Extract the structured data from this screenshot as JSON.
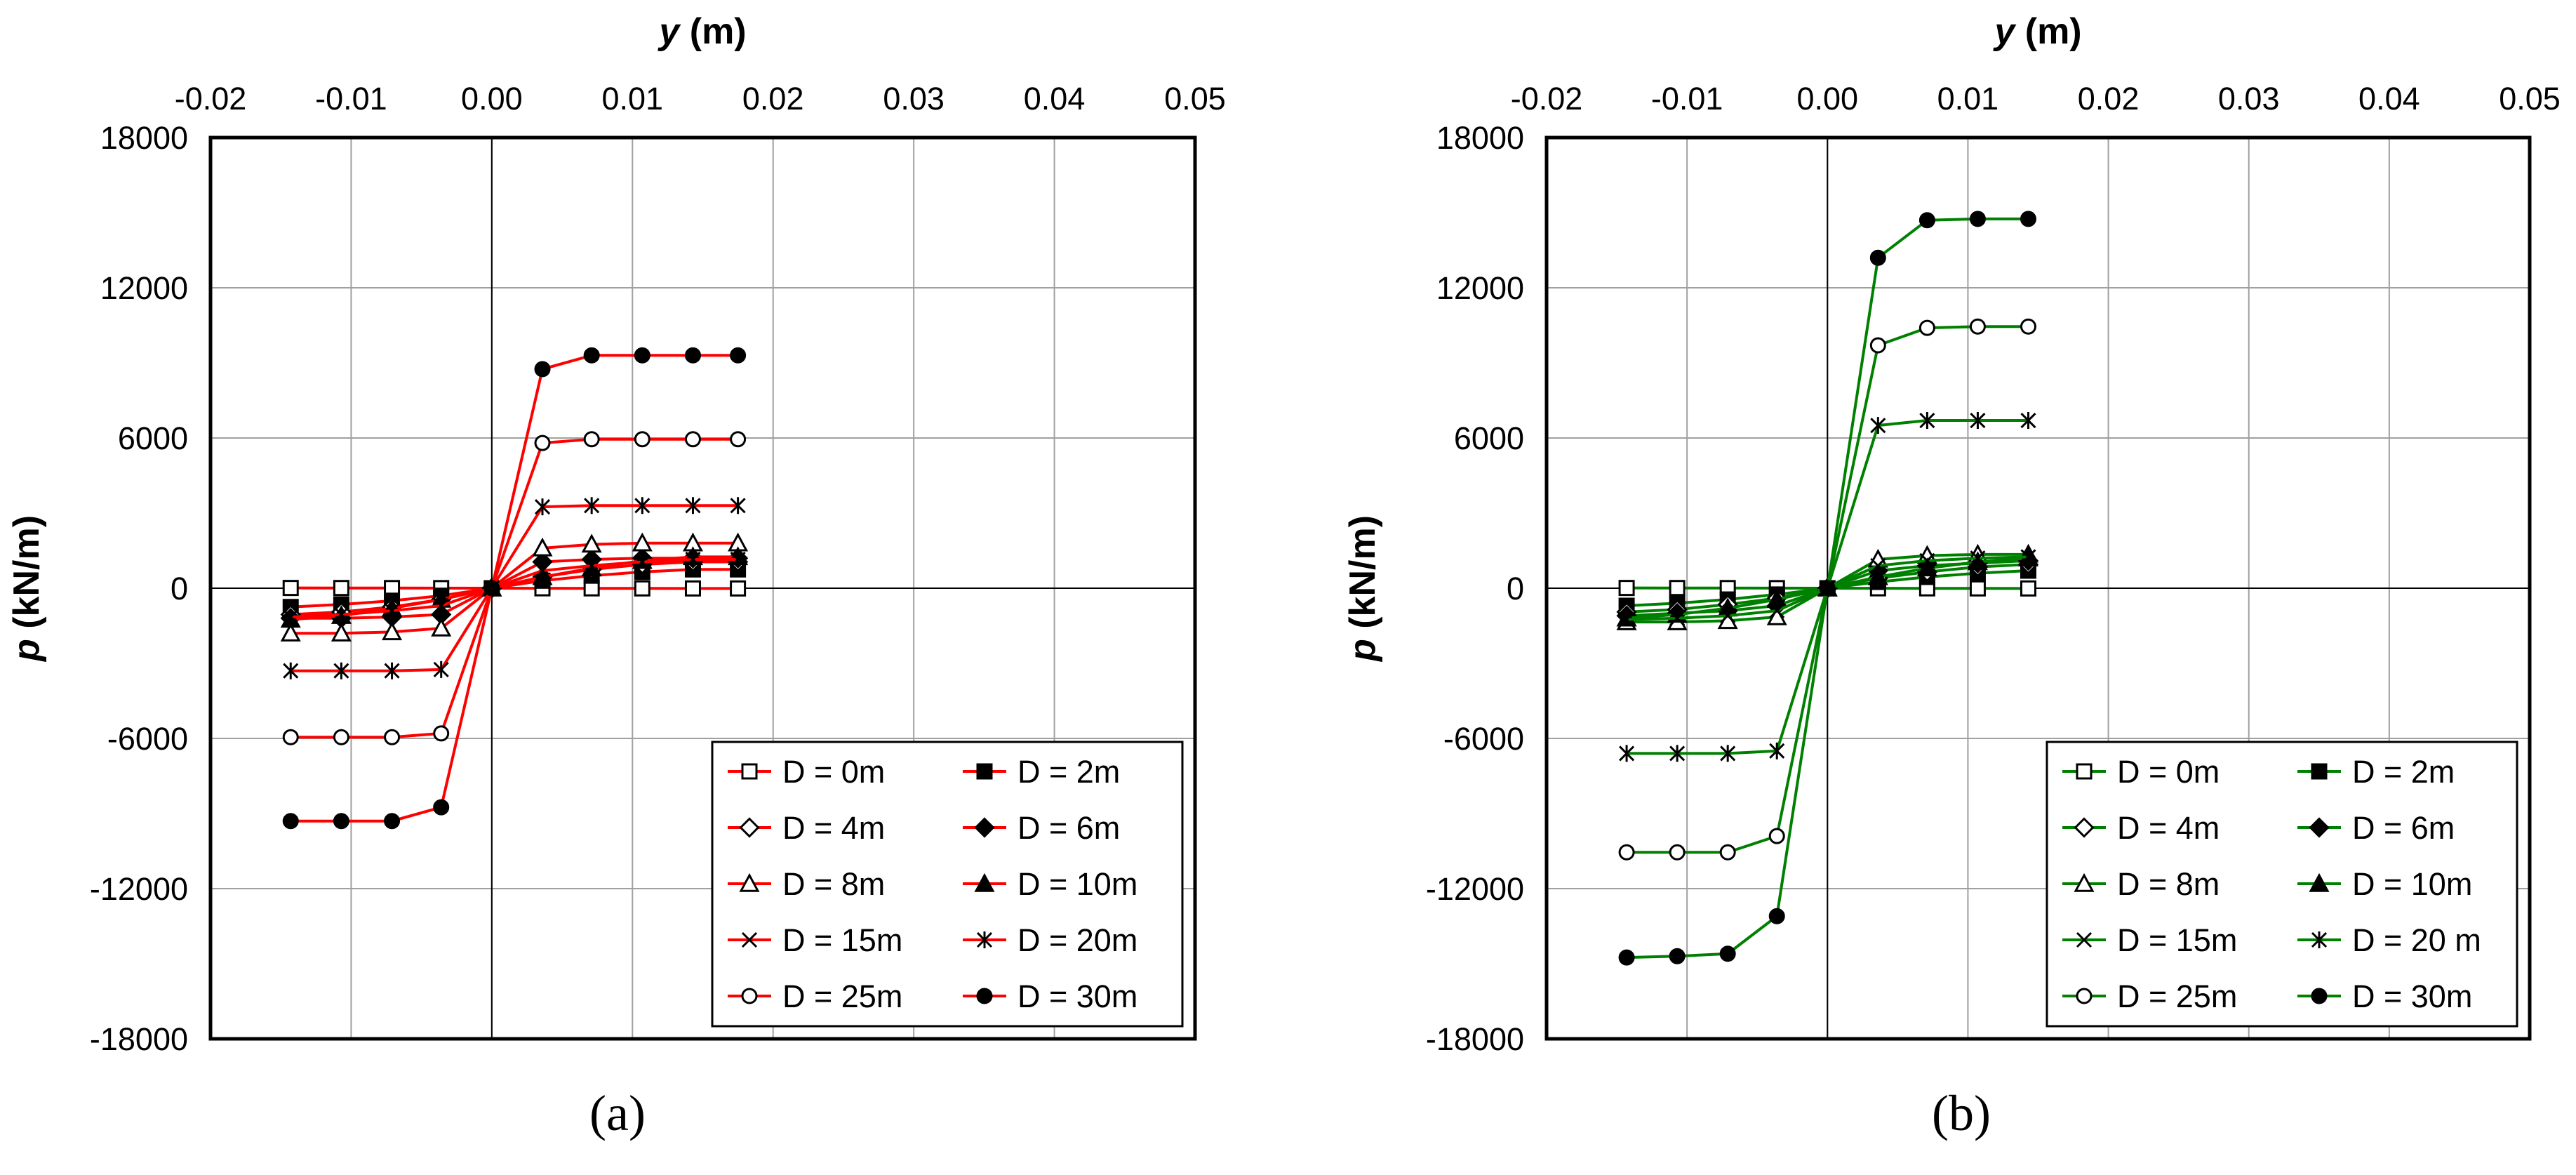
{
  "chart_data": [
    {
      "type": "line",
      "panel_label": "(a)",
      "xlabel": "y (m)",
      "xlabel_var": "y",
      "xlabel_unit": "(m)",
      "ylabel": "p (kN/m)",
      "ylabel_var": "p",
      "ylabel_unit": "(kN/m)",
      "xlim": [
        -0.02,
        0.05
      ],
      "ylim": [
        -18000,
        18000
      ],
      "xticks": [
        "-0.02",
        "-0.01",
        "0.00",
        "0.01",
        "0.02",
        "0.03",
        "0.04",
        "0.05"
      ],
      "yticks": [
        "18000",
        "12000",
        "6000",
        "0",
        "-6000",
        "-12000",
        "-18000"
      ],
      "x_axis_position": "top",
      "grid": true,
      "legend": "bottom-right",
      "color": "#ff0000",
      "series": [
        {
          "name": "D = 0m",
          "marker": "square-open",
          "x": [
            -0.0143,
            -0.0107,
            -0.0071,
            -0.0036,
            0,
            0.0036,
            0.0071,
            0.0107,
            0.0143,
            0.0175
          ],
          "y": [
            10,
            8,
            6,
            4,
            0,
            -4,
            -6,
            -8,
            -10,
            -10
          ]
        },
        {
          "name": "D = 2m",
          "marker": "square-filled",
          "x": [
            -0.0143,
            -0.0107,
            -0.0071,
            -0.0036,
            0,
            0.0036,
            0.0071,
            0.0107,
            0.0143,
            0.0175
          ],
          "y": [
            -750,
            -650,
            -500,
            -300,
            0,
            300,
            500,
            650,
            750,
            750
          ]
        },
        {
          "name": "D = 4m",
          "marker": "diamond-open",
          "x": [
            -0.0143,
            -0.0107,
            -0.0071,
            -0.0036,
            0,
            0.0036,
            0.0071,
            0.0107,
            0.0143,
            0.0175
          ],
          "y": [
            -1050,
            -950,
            -750,
            -450,
            0,
            450,
            750,
            950,
            1050,
            1050
          ]
        },
        {
          "name": "D = 6m",
          "marker": "diamond-filled",
          "x": [
            -0.0143,
            -0.0107,
            -0.0071,
            -0.0036,
            0,
            0.0036,
            0.0071,
            0.0107,
            0.0143,
            0.0175
          ],
          "y": [
            -1200,
            -1200,
            -1150,
            -1050,
            0,
            1050,
            1150,
            1200,
            1200,
            1200
          ]
        },
        {
          "name": "D = 8m",
          "marker": "triangle-open",
          "x": [
            -0.0143,
            -0.0107,
            -0.0071,
            -0.0036,
            0,
            0.0036,
            0.0071,
            0.0107,
            0.0143,
            0.0175
          ],
          "y": [
            -1800,
            -1800,
            -1750,
            -1600,
            0,
            1600,
            1750,
            1800,
            1800,
            1800
          ]
        },
        {
          "name": "D = 10m",
          "marker": "triangle-filled",
          "x": [
            -0.0143,
            -0.0107,
            -0.0071,
            -0.0036,
            0,
            0.0036,
            0.0071,
            0.0107,
            0.0143,
            0.0175
          ],
          "y": [
            -1250,
            -1100,
            -800,
            -450,
            0,
            450,
            800,
            1100,
            1250,
            1250
          ]
        },
        {
          "name": "D = 15m",
          "marker": "x",
          "x": [
            -0.0143,
            -0.0107,
            -0.0071,
            -0.0036,
            0,
            0.0036,
            0.0071,
            0.0107,
            0.0143,
            0.0175
          ],
          "y": [
            -1150,
            -1050,
            -900,
            -700,
            0,
            700,
            900,
            1050,
            1150,
            1150
          ]
        },
        {
          "name": "D = 20m",
          "marker": "star",
          "x": [
            -0.0143,
            -0.0107,
            -0.0071,
            -0.0036,
            0,
            0.0036,
            0.0071,
            0.0107,
            0.0143,
            0.0175
          ],
          "y": [
            -3300,
            -3300,
            -3300,
            -3250,
            0,
            3250,
            3300,
            3300,
            3300,
            3300
          ]
        },
        {
          "name": "D = 25m",
          "marker": "circle-open",
          "x": [
            -0.0143,
            -0.0107,
            -0.0071,
            -0.0036,
            0,
            0.0036,
            0.0071,
            0.0107,
            0.0143,
            0.0175
          ],
          "y": [
            -5950,
            -5950,
            -5950,
            -5800,
            0,
            5800,
            5950,
            5950,
            5950,
            5950
          ]
        },
        {
          "name": "D = 30m",
          "marker": "circle-filled",
          "x": [
            -0.0143,
            -0.0107,
            -0.0071,
            -0.0036,
            0,
            0.0036,
            0.0071,
            0.0107,
            0.0143,
            0.0175
          ],
          "y": [
            -9300,
            -9300,
            -9300,
            -8750,
            0,
            8750,
            9300,
            9300,
            9300,
            9300
          ]
        }
      ]
    },
    {
      "type": "line",
      "panel_label": "(b)",
      "xlabel": "y (m)",
      "xlabel_var": "y",
      "xlabel_unit": "(m)",
      "ylabel": "p (kN/m)",
      "ylabel_var": "p",
      "ylabel_unit": "(kN/m)",
      "xlim": [
        -0.02,
        0.05
      ],
      "ylim": [
        -18000,
        18000
      ],
      "xticks": [
        "-0.02",
        "-0.01",
        "0.00",
        "0.01",
        "0.02",
        "0.03",
        "0.04",
        "0.05"
      ],
      "yticks": [
        "18000",
        "12000",
        "6000",
        "0",
        "-6000",
        "-12000",
        "-18000"
      ],
      "x_axis_position": "top",
      "grid": true,
      "legend": "bottom-right",
      "color": "#008000",
      "series": [
        {
          "name": "D = 0m",
          "marker": "square-open",
          "x": [
            -0.0143,
            -0.0107,
            -0.0071,
            -0.0036,
            0,
            0.0036,
            0.0071,
            0.0107,
            0.0143
          ],
          "y": [
            10,
            8,
            6,
            4,
            0,
            -4,
            -6,
            -8,
            -10
          ]
        },
        {
          "name": "D = 2m",
          "marker": "square-filled",
          "x": [
            -0.0143,
            -0.0107,
            -0.0071,
            -0.0036,
            0,
            0.0036,
            0.0071,
            0.0107,
            0.0143
          ],
          "y": [
            -700,
            -600,
            -450,
            -250,
            0,
            250,
            450,
            600,
            700
          ]
        },
        {
          "name": "D = 4m",
          "marker": "diamond-open",
          "x": [
            -0.0143,
            -0.0107,
            -0.0071,
            -0.0036,
            0,
            0.0036,
            0.0071,
            0.0107,
            0.0143
          ],
          "y": [
            -950,
            -850,
            -650,
            -400,
            0,
            400,
            650,
            850,
            950
          ]
        },
        {
          "name": "D = 6m",
          "marker": "diamond-filled",
          "x": [
            -0.0143,
            -0.0107,
            -0.0071,
            -0.0036,
            0,
            0.0036,
            0.0071,
            0.0107,
            0.0143
          ],
          "y": [
            -1100,
            -1000,
            -900,
            -700,
            0,
            700,
            900,
            1000,
            1100
          ]
        },
        {
          "name": "D = 8m",
          "marker": "triangle-open",
          "x": [
            -0.0143,
            -0.0107,
            -0.0071,
            -0.0036,
            0,
            0.0036,
            0.0071,
            0.0107,
            0.0143
          ],
          "y": [
            -1350,
            -1350,
            -1300,
            -1150,
            0,
            1150,
            1300,
            1350,
            1350
          ]
        },
        {
          "name": "D = 10m",
          "marker": "triangle-filled",
          "x": [
            -0.0143,
            -0.0107,
            -0.0071,
            -0.0036,
            0,
            0.0036,
            0.0071,
            0.0107,
            0.0143
          ],
          "y": [
            -1200,
            -1050,
            -800,
            -450,
            0,
            450,
            800,
            1050,
            1200
          ]
        },
        {
          "name": "D = 15m",
          "marker": "x",
          "x": [
            -0.0143,
            -0.0107,
            -0.0071,
            -0.0036,
            0,
            0.0036,
            0.0071,
            0.0107,
            0.0143
          ],
          "y": [
            -1250,
            -1200,
            -1100,
            -900,
            0,
            900,
            1100,
            1200,
            1250
          ]
        },
        {
          "name": "D = 20 m",
          "marker": "star",
          "x": [
            -0.0143,
            -0.0107,
            -0.0071,
            -0.0036,
            0,
            0.0036,
            0.0071,
            0.0107,
            0.0143
          ],
          "y": [
            -6600,
            -6600,
            -6600,
            -6500,
            0,
            6500,
            6700,
            6700,
            6700
          ]
        },
        {
          "name": "D = 25m",
          "marker": "circle-open",
          "x": [
            -0.0143,
            -0.0107,
            -0.0071,
            -0.0036,
            0,
            0.0036,
            0.0071,
            0.0107,
            0.0143
          ],
          "y": [
            -10550,
            -10550,
            -10550,
            -9900,
            0,
            9700,
            10400,
            10450,
            10450
          ]
        },
        {
          "name": "D = 30m",
          "marker": "circle-filled",
          "x": [
            -0.0143,
            -0.0107,
            -0.0071,
            -0.0036,
            0,
            0.0036,
            0.0071,
            0.0107,
            0.0143
          ],
          "y": [
            -14750,
            -14700,
            -14600,
            -13100,
            0,
            13200,
            14700,
            14750,
            14750
          ]
        }
      ]
    }
  ]
}
